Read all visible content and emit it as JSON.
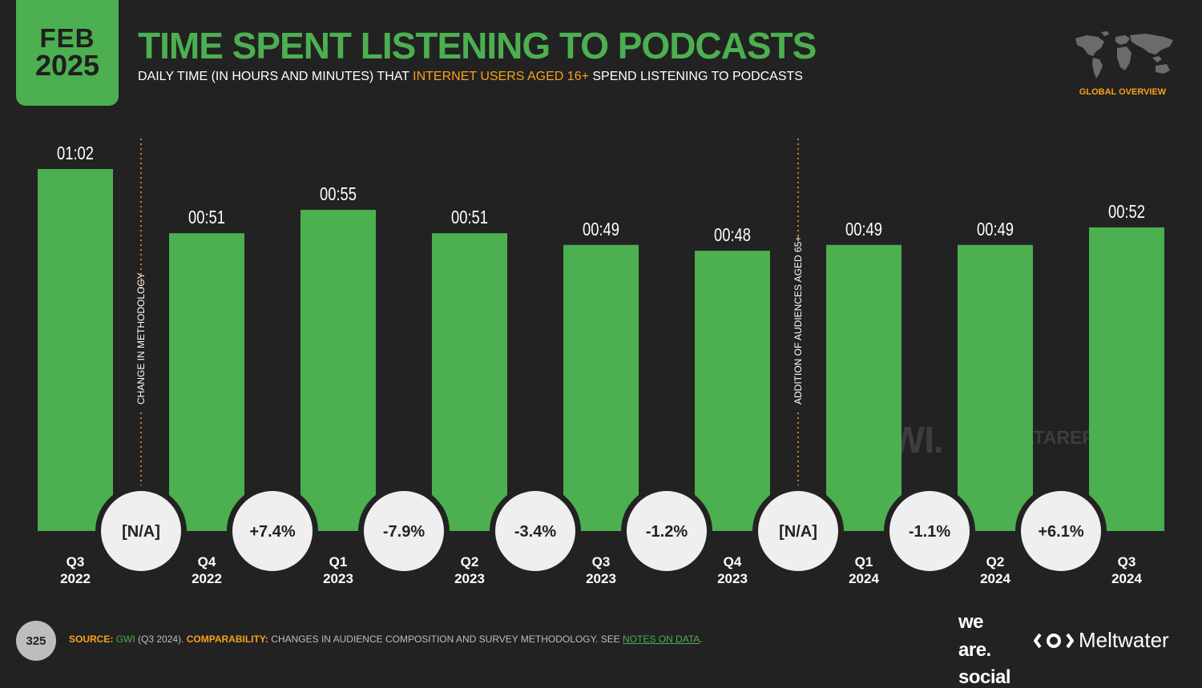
{
  "header": {
    "date_month": "FEB",
    "date_year": "2025",
    "title": "TIME SPENT LISTENING TO PODCASTS",
    "subtitle_pre": "DAILY TIME (IN HOURS AND MINUTES) THAT ",
    "subtitle_highlight": "INTERNET USERS AGED 16+",
    "subtitle_post": " SPEND LISTENING TO PODCASTS",
    "badge_label": "GLOBAL OVERVIEW"
  },
  "chart_data": {
    "type": "bar",
    "categories": [
      {
        "quarter": "Q3",
        "year": "2022"
      },
      {
        "quarter": "Q4",
        "year": "2022"
      },
      {
        "quarter": "Q1",
        "year": "2023"
      },
      {
        "quarter": "Q2",
        "year": "2023"
      },
      {
        "quarter": "Q3",
        "year": "2023"
      },
      {
        "quarter": "Q4",
        "year": "2023"
      },
      {
        "quarter": "Q1",
        "year": "2024"
      },
      {
        "quarter": "Q2",
        "year": "2024"
      },
      {
        "quarter": "Q3",
        "year": "2024"
      }
    ],
    "values_minutes": [
      62,
      51,
      55,
      51,
      49,
      48,
      49,
      49,
      52
    ],
    "value_labels": [
      "01:02",
      "00:51",
      "00:55",
      "00:51",
      "00:49",
      "00:48",
      "00:49",
      "00:49",
      "00:52"
    ],
    "changes": [
      "[N/A]",
      "+7.4%",
      "-7.9%",
      "-3.4%",
      "-1.2%",
      "[N/A]",
      "-1.1%",
      "+6.1%"
    ],
    "annotations": [
      {
        "after_index": 0,
        "text": "CHANGE IN METHODOLOGY"
      },
      {
        "after_index": 5,
        "text": "ADDITION OF AUDIENCES AGED 65+"
      }
    ],
    "ylim": [
      0,
      62
    ],
    "bar_color": "#4caf50"
  },
  "watermarks": {
    "gwi": "GWI.",
    "datareportal": "DATAREPORTAL"
  },
  "footer": {
    "page_number": "325",
    "source_label": "SOURCE:",
    "source_name": "GWI",
    "source_period": " (Q3 2024). ",
    "comparability_label": "COMPARABILITY:",
    "comparability_text": " CHANGES IN AUDIENCE COMPOSITION AND SURVEY METHODOLOGY. SEE ",
    "notes_link": "NOTES ON DATA",
    "notes_end": ".",
    "brand_was_1": "we",
    "brand_was_2": "are.",
    "brand_was_3": "social",
    "brand_meltwater": "Meltwater"
  }
}
